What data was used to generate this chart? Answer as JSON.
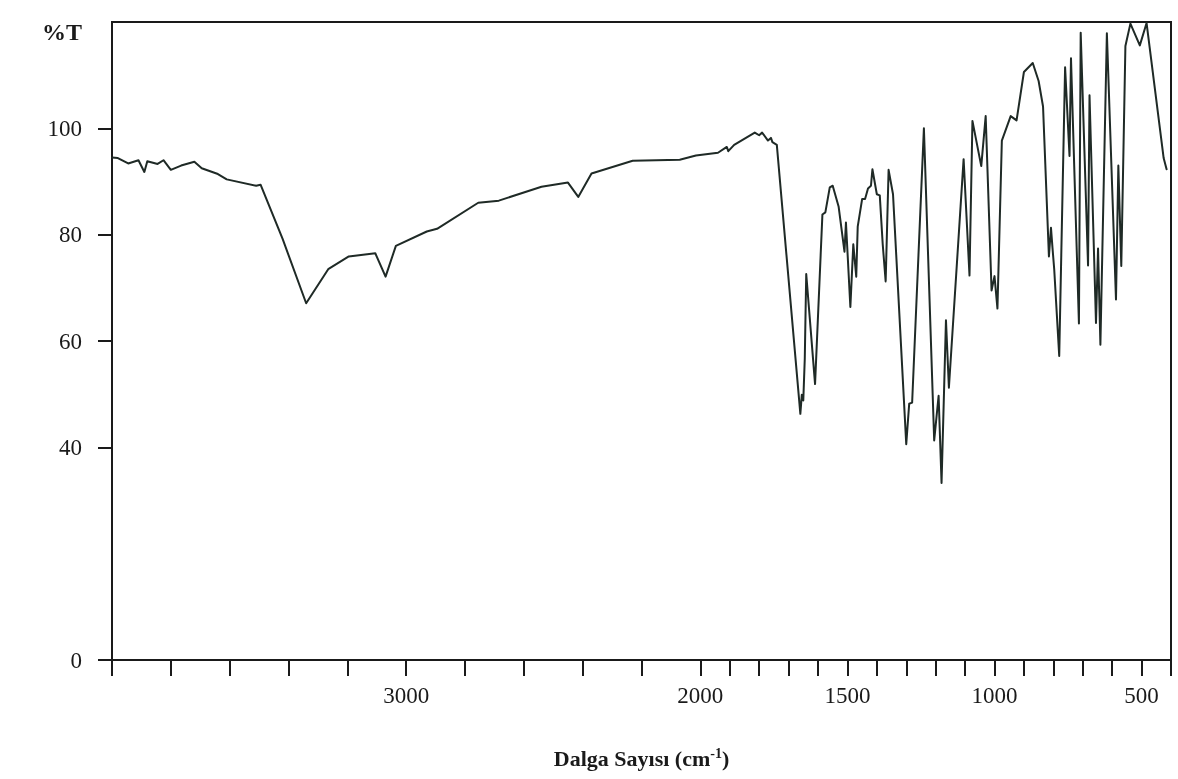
{
  "chart_data": {
    "type": "line",
    "xlabel": "Dalga Sayısı (cm$^{-1}$)",
    "ylabel": "%T",
    "color": "#1f2a26",
    "xlim": [
      4000,
      400
    ],
    "xticks": [
      {
        "value": 4000,
        "label": null
      },
      {
        "value": 3800,
        "label": null
      },
      {
        "value": 3600,
        "label": null
      },
      {
        "value": 3400,
        "label": null
      },
      {
        "value": 3200,
        "label": null
      },
      3000,
      {
        "value": 2800,
        "label": null
      },
      {
        "value": 2600,
        "label": null
      },
      {
        "value": 2400,
        "label": null
      },
      {
        "value": 2200,
        "label": null
      },
      2000,
      {
        "value": 1900,
        "label": null
      },
      {
        "value": 1800,
        "label": null
      },
      {
        "value": 1700,
        "label": null
      },
      {
        "value": 1600,
        "label": null
      },
      1500,
      {
        "value": 1400,
        "label": null
      },
      {
        "value": 1300,
        "label": null
      },
      {
        "value": 1200,
        "label": null
      },
      {
        "value": 1100,
        "label": null
      },
      1000,
      {
        "value": 900,
        "label": null
      },
      {
        "value": 800,
        "label": null
      },
      {
        "value": 700,
        "label": null
      },
      {
        "value": 600,
        "label": null
      },
      500,
      {
        "value": 400,
        "label": null
      }
    ],
    "ylim": [
      0,
      120
    ],
    "yticks": [
      0,
      40,
      60,
      80,
      100
    ],
    "x": [
      4000,
      3980,
      3945,
      3910,
      3890,
      3880,
      3845,
      3825,
      3800,
      3765,
      3720,
      3695,
      3640,
      3610,
      3510,
      3495,
      3420,
      3340,
      3265,
      3195,
      3105,
      3070,
      3035,
      2930,
      2895,
      2755,
      2685,
      2540,
      2450,
      2415,
      2370,
      2230,
      2070,
      2015,
      1940,
      1910,
      1905,
      1885,
      1815,
      1800,
      1790,
      1770,
      1760,
      1755,
      1740,
      1660,
      1655,
      1650,
      1645,
      1640,
      1610,
      1585,
      1575,
      1560,
      1550,
      1530,
      1510,
      1505,
      1490,
      1480,
      1470,
      1465,
      1450,
      1440,
      1430,
      1420,
      1415,
      1400,
      1390,
      1380,
      1370,
      1360,
      1345,
      1300,
      1290,
      1280,
      1240,
      1205,
      1190,
      1180,
      1165,
      1155,
      1105,
      1085,
      1075,
      1045,
      1030,
      1010,
      1000,
      990,
      975,
      945,
      925,
      900,
      870,
      850,
      835,
      815,
      808,
      803,
      797,
      780,
      760,
      745,
      740,
      713,
      707,
      682,
      677,
      655,
      648,
      640,
      618,
      587,
      579,
      569,
      555,
      538,
      506,
      483,
      425,
      415
    ],
    "values": [
      94.5,
      94.4,
      93.4,
      94.0,
      91.8,
      93.8,
      93.3,
      94.0,
      92.2,
      93.0,
      93.7,
      92.5,
      91.4,
      90.4,
      89.2,
      89.4,
      79.2,
      67.1,
      73.5,
      75.9,
      76.5,
      72.1,
      77.9,
      80.6,
      81.1,
      86.0,
      86.4,
      89.0,
      89.8,
      87.1,
      91.5,
      93.9,
      94.1,
      94.9,
      95.4,
      96.5,
      95.7,
      96.9,
      99.2,
      98.7,
      99.2,
      97.7,
      98.2,
      97.4,
      96.9,
      46.3,
      49.9,
      48.8,
      56.6,
      72.6,
      51.9,
      83.8,
      84.2,
      88.9,
      89.2,
      85.3,
      76.8,
      82.3,
      66.4,
      78.2,
      72.1,
      81.5,
      86.7,
      86.7,
      88.7,
      89.2,
      92.3,
      87.6,
      87.4,
      78.2,
      71.2,
      92.2,
      87.6,
      40.6,
      48.2,
      48.4,
      100.0,
      41.3,
      49.7,
      33.3,
      63.9,
      51.2,
      94.2,
      72.3,
      101.4,
      92.9,
      102.3,
      69.5,
      72.2,
      66.1,
      97.7,
      102.3,
      101.5,
      110.6,
      112.3,
      108.9,
      104.1,
      75.9,
      81.3,
      77.6,
      73.5,
      57.2,
      111.5,
      94.8,
      113.2,
      63.3,
      118.0,
      74.2,
      106.2,
      63.4,
      77.4,
      59.3,
      117.9,
      67.8,
      93.0,
      74.1,
      115.5,
      119.7,
      115.6,
      119.8,
      94.4,
      92.3
    ]
  }
}
